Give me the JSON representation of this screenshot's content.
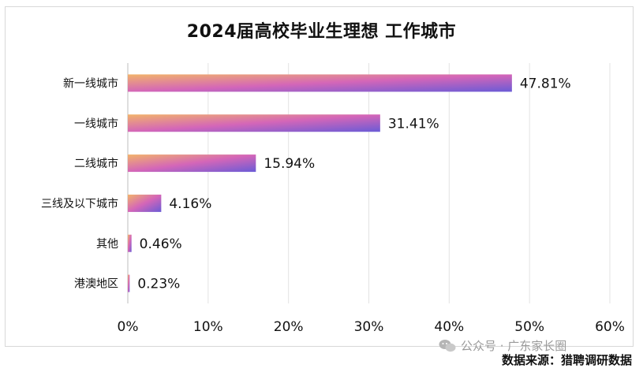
{
  "chart_data": {
    "type": "bar",
    "orientation": "horizontal",
    "title": "2024届高校毕业生理想 工作城市",
    "categories": [
      "新一线城市",
      "一线城市",
      "二线城市",
      "三线及以下城市",
      "其他",
      "港澳地区"
    ],
    "values": [
      47.81,
      31.41,
      15.94,
      4.16,
      0.46,
      0.23
    ],
    "data_labels": [
      "47.81%",
      "31.41%",
      "15.94%",
      "4.16%",
      "0.46%",
      "0.23%"
    ],
    "xlim": [
      0,
      60
    ],
    "xticks": [
      "0%",
      "10%",
      "20%",
      "30%",
      "40%",
      "50%",
      "60%"
    ],
    "grid": true,
    "bar_gradient": [
      "#f2b36a",
      "#d466b8",
      "#6a5bd6"
    ]
  },
  "source": "数据来源：猎聘调研数据",
  "watermark": "公众号 · 广东家长圈"
}
